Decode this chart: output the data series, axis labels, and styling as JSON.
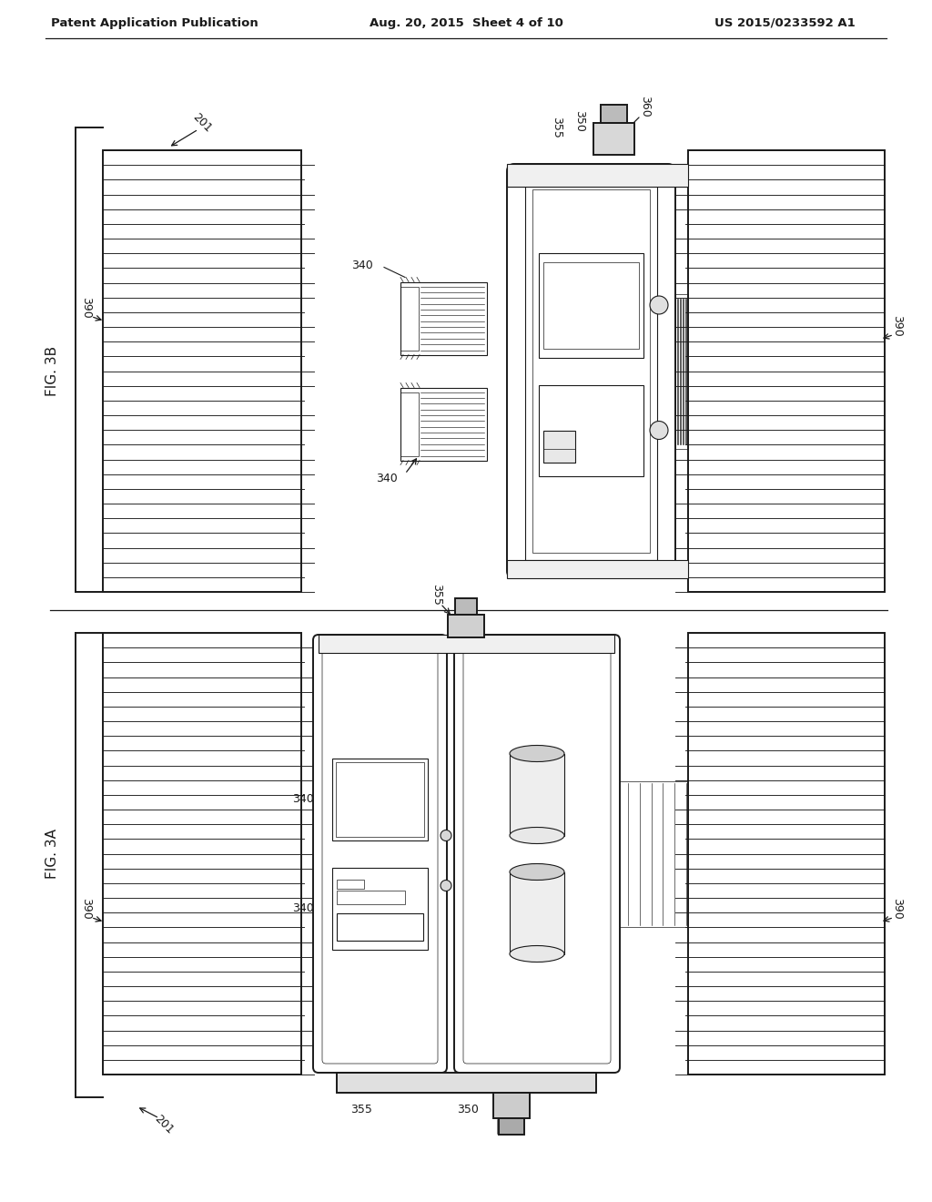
{
  "background_color": "#ffffff",
  "header_left": "Patent Application Publication",
  "header_center": "Aug. 20, 2015  Sheet 4 of 10",
  "header_right": "US 2015/0233592 A1",
  "fig3b_label": "FIG. 3B",
  "fig3a_label": "FIG. 3A",
  "line_color": "#1a1a1a"
}
